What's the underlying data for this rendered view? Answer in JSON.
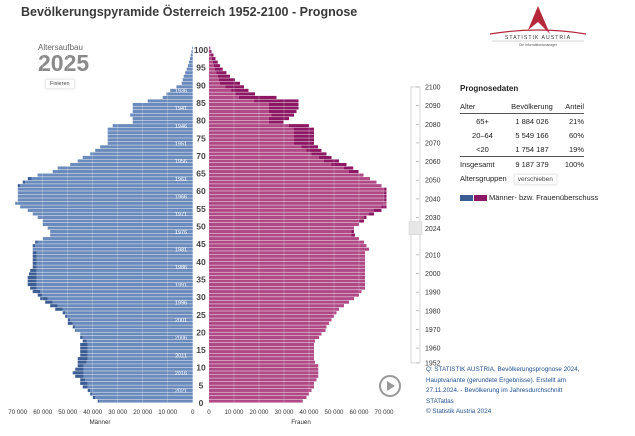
{
  "title": "Bevölkerungspyramide Österreich 1952-2100 - Prognose",
  "left_panel": {
    "label": "Altersaufbau",
    "year": "2025",
    "fix_button": "Fixieren"
  },
  "logo": {
    "name": "STATISTIK AUSTRIA",
    "tagline": "Die Informationsmanager"
  },
  "prognosis": {
    "heading": "Prognosedaten",
    "columns": [
      "Alter",
      "Bevölkerung",
      "Anteil"
    ],
    "rows": [
      {
        "age": "65+",
        "population": "1 884 026",
        "share": "21%"
      },
      {
        "age": "20–64",
        "population": "5 549 166",
        "share": "60%"
      },
      {
        "age": "<20",
        "population": "1 754 187",
        "share": "19%"
      }
    ],
    "total": {
      "age": "Insgesamt",
      "population": "9 187 379",
      "share": "100%"
    }
  },
  "age_groups": {
    "label": "Altersgruppen",
    "button": "verschieben"
  },
  "legend": {
    "label": "Männer- bzw. Frauenüberschuss"
  },
  "slider": {
    "labels": [
      "2100",
      "2090",
      "2080",
      "2070",
      "2060",
      "2050",
      "2040",
      "2030",
      "2024",
      "2010",
      "2000",
      "1990",
      "1980",
      "1970",
      "1960",
      "1952"
    ],
    "selected": "2024"
  },
  "source": [
    "Q: STATISTIK AUSTRIA, Bevölkerungsprognose 2024,",
    "Hauptvariante (gerundete Ergebnisse). Erstellt am",
    "27.11.2024. - Bevölkerung im Jahresdurchschnitt",
    "STATatlas",
    "© Statistik Austria 2024"
  ],
  "colors": {
    "male": "#6a8bbb",
    "male_surplus": "#3b5d93",
    "female": "#b04a87",
    "female_surplus": "#8c1762"
  },
  "chart_data": {
    "type": "bar",
    "title": "Bevölkerungspyramide Österreich 2025",
    "xlabel_left": "Männer",
    "xlabel_right": "Frauen",
    "xlim": [
      0,
      70000
    ],
    "x_ticks": [
      "70 000",
      "60 000",
      "50 000",
      "40 000",
      "30 000",
      "20 000",
      "10 000",
      "0"
    ],
    "x_ticks_right": [
      "0",
      "10 000",
      "20 000",
      "30 000",
      "40 000",
      "50 000",
      "60 000",
      "70 000"
    ],
    "age_ticks": [
      "100",
      "95",
      "90",
      "85",
      "80",
      "75",
      "70",
      "65",
      "60",
      "55",
      "50",
      "45",
      "40",
      "35",
      "30",
      "25",
      "20",
      "15",
      "10",
      "5",
      "0"
    ],
    "birth_year_labels": [
      "1936",
      "1941",
      "1946",
      "1951",
      "1956",
      "1961",
      "1966",
      "1971",
      "1976",
      "1981",
      "1986",
      "1991",
      "1996",
      "2001",
      "2006",
      "2011",
      "2016",
      "2021"
    ],
    "reference_year": 2024,
    "ages": "0-100",
    "male": [
      38000,
      40000,
      41000,
      42000,
      44000,
      45000,
      45000,
      47000,
      48000,
      47000,
      46000,
      46000,
      46000,
      45000,
      45000,
      45000,
      45000,
      44000,
      45000,
      45000,
      47000,
      48000,
      50000,
      50000,
      51000,
      52000,
      55000,
      57000,
      59000,
      61000,
      62000,
      64000,
      65000,
      66000,
      66000,
      66000,
      65500,
      65000,
      64000,
      64000,
      64000,
      64000,
      64000,
      64000,
      64000,
      63000,
      60000,
      57000,
      57000,
      58000,
      60000,
      60000,
      62000,
      64000,
      66000,
      69000,
      71000,
      70000,
      70000,
      70000,
      70000,
      70000,
      68000,
      66000,
      62000,
      56000,
      54000,
      49000,
      46000,
      44000,
      41000,
      39000,
      37000,
      34000,
      34000,
      34000,
      34000,
      34000,
      32000,
      24000,
      24000,
      25000,
      24000,
      24000,
      24000,
      18000,
      12000,
      10500,
      9000,
      6500,
      4400,
      4000,
      3600,
      3000,
      2400,
      1900,
      1500,
      1100,
      800,
      500,
      300
    ],
    "female": [
      37500,
      39000,
      40000,
      41000,
      42000,
      42000,
      43000,
      43700,
      43700,
      43700,
      43700,
      42400,
      42000,
      42000,
      42000,
      42000,
      42000,
      42400,
      44000,
      45000,
      46600,
      47000,
      48000,
      49000,
      50000,
      51000,
      52000,
      54000,
      56000,
      58000,
      60000,
      61000,
      62400,
      62400,
      62400,
      62400,
      62400,
      62400,
      62400,
      62400,
      62400,
      62400,
      62400,
      64000,
      63000,
      62000,
      60000,
      58400,
      58000,
      58000,
      60000,
      62000,
      63000,
      66000,
      69000,
      71000,
      71000,
      71000,
      71000,
      71000,
      71000,
      69000,
      67000,
      64400,
      61800,
      59800,
      57700,
      55000,
      52000,
      49000,
      47000,
      45000,
      43600,
      42000,
      42000,
      42000,
      42000,
      42000,
      40000,
      29800,
      32000,
      34000,
      35000,
      35800,
      35800,
      35800,
      27000,
      18400,
      15800,
      14000,
      12400,
      10400,
      8400,
      7000,
      5500,
      4400,
      3500,
      2600,
      1800,
      1000,
      500
    ]
  }
}
